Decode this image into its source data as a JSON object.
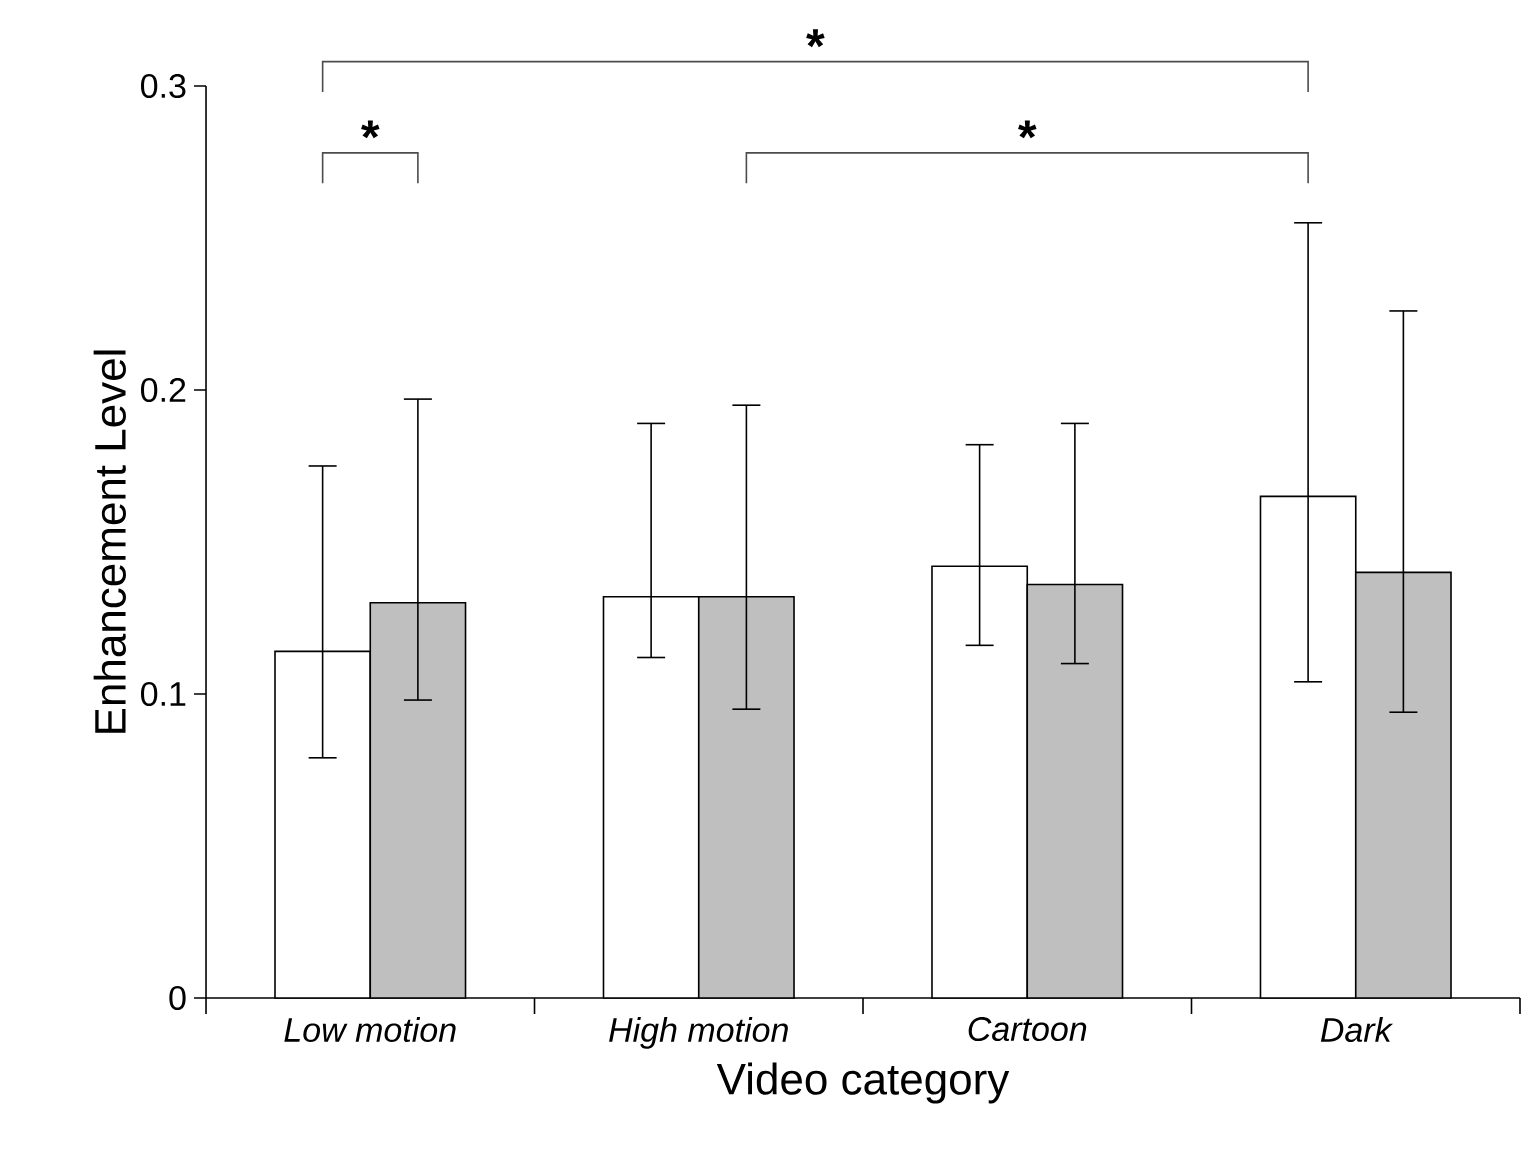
{
  "chart_data": {
    "type": "bar",
    "xlabel": "Video category",
    "ylabel": "Enhancement Level",
    "categories": [
      "Low motion",
      "High motion",
      "Cartoon",
      "Dark"
    ],
    "series": [
      {
        "color": "#ffffff",
        "values": [
          0.114,
          0.132,
          0.142,
          0.165
        ],
        "errors": [
          [
            0.079,
            0.175
          ],
          [
            0.112,
            0.189
          ],
          [
            0.116,
            0.182
          ],
          [
            0.104,
            0.255
          ]
        ]
      },
      {
        "color": "#bfbfbf",
        "values": [
          0.13,
          0.132,
          0.136,
          0.14
        ],
        "errors": [
          [
            0.098,
            0.197
          ],
          [
            0.095,
            0.195
          ],
          [
            0.11,
            0.189
          ],
          [
            0.094,
            0.226
          ]
        ]
      }
    ],
    "ylim": [
      0,
      0.3
    ],
    "yticks": [
      0,
      0.1,
      0.2,
      0.3
    ],
    "grid": false,
    "annotations": [
      "*",
      "*",
      "*"
    ]
  }
}
